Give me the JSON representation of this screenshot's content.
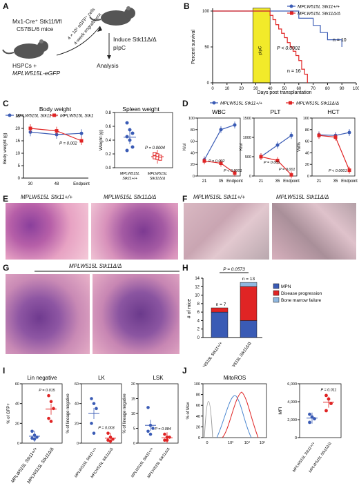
{
  "colors": {
    "blue": "#3a5bb5",
    "red": "#e02424",
    "yellow": "#f2ea2a",
    "darkred": "#c81e1e",
    "lightblue": "#8fb8e0"
  },
  "panels": {
    "A": {
      "label": "A",
      "mouse_top": "Mx1-Cre⁺ Stk11fl/fl",
      "strain": "C57BL/6 mice",
      "cells": "HSPCs +",
      "vector": "MPLW515L-eGFP",
      "transplant": "4 × 10⁵ eGFP⁺ cells",
      "engraft": "4-week engraftment",
      "induce": "Induce Stk11Δ/Δ",
      "drug": "pIpC",
      "analysis": "Analysis"
    },
    "B": {
      "label": "B",
      "legend": [
        "MPLW515L Stk11+/+",
        "MPLW515L Stk11Δ/Δ"
      ],
      "ylabel": "Percent survival",
      "xlabel": "Days post transplantation",
      "box": "pIpC",
      "pval": "P < 0.0001",
      "n_wt": "n = 10",
      "n_ko": "n = 16",
      "chart_data": {
        "type": "line",
        "x_ticks": [
          0,
          10,
          20,
          30,
          40,
          50,
          60,
          70,
          80,
          90,
          100
        ],
        "y_ticks": [
          0,
          50,
          100
        ],
        "series": [
          {
            "name": "MPLW515L Stk11+/+",
            "x": [
              0,
              50,
              60,
              70,
              75,
              80,
              90
            ],
            "y": [
              100,
              100,
              90,
              80,
              70,
              60,
              50
            ]
          },
          {
            "name": "MPLW515L Stk11Δ/Δ",
            "x": [
              0,
              40,
              42,
              44,
              46,
              48,
              50,
              52,
              54,
              56,
              58,
              60,
              62,
              64,
              66
            ],
            "y": [
              100,
              94,
              88,
              81,
              75,
              69,
              63,
              56,
              50,
              44,
              38,
              31,
              19,
              12,
              0
            ]
          }
        ]
      }
    },
    "C": {
      "label": "C",
      "bw_title": "Body weight",
      "sw_title": "Spleen weight",
      "legend": [
        "MPLW515L Stk11+/+",
        "MPLW515L Stk11Δ/Δ"
      ],
      "bw_ylabel": "Body weight (g)",
      "sw_ylabel": "Weight (g)",
      "bw_p": "P = 0.002",
      "sw_p": "P = 0.0004",
      "xticks": [
        "30",
        "48",
        "Endpoint"
      ],
      "sw_cats": [
        "MPLW515L Stk11+/+",
        "MPLW515L Stk11Δ/Δ"
      ],
      "chart_data": [
        {
          "type": "line",
          "categories": [
            "30",
            "48",
            "Endpoint"
          ],
          "ylim": [
            0,
            25
          ],
          "series": [
            {
              "name": "MPLW515L Stk11+/+",
              "values": [
                18.5,
                17.5,
                18
              ]
            },
            {
              "name": "MPLW515L Stk11Δ/Δ",
              "values": [
                20,
                19,
                15
              ]
            }
          ]
        },
        {
          "type": "scatter",
          "categories": [
            "MPLW515L Stk11+/+",
            "MPLW515L Stk11Δ/Δ"
          ],
          "ylim": [
            0,
            0.8
          ],
          "series": [
            {
              "name": "MPLW515L Stk11+/+",
              "values": [
                0.65,
                0.55,
                0.5,
                0.45,
                0.4,
                0.3,
                0.25
              ]
            },
            {
              "name": "MPLW515L Stk11Δ/Δ",
              "values": [
                0.2,
                0.18,
                0.16,
                0.15,
                0.14,
                0.13
              ]
            }
          ]
        }
      ]
    },
    "D": {
      "label": "D",
      "legend": [
        "MPLW515L Stk11+/+",
        "MPLW515L Stk11Δ/Δ"
      ],
      "titles": [
        "WBC",
        "PLT",
        "HCT"
      ],
      "ylabels": [
        "K/ul",
        "K/ul",
        "Vol%"
      ],
      "xticks": [
        "21",
        "35",
        "Endpoint"
      ],
      "pvals": {
        "wbc": [
          "P = 0.002",
          "P < 0.0001"
        ],
        "plt": [
          "P = 0.001",
          "P = 0.001"
        ],
        "hct": [
          "P < 0.0001"
        ]
      },
      "chart_data": [
        {
          "type": "line",
          "title": "WBC",
          "ylim": [
            0,
            100
          ],
          "series": [
            {
              "name": "MPLW515L Stk11+/+",
              "values": [
                28,
                80,
                88
              ]
            },
            {
              "name": "MPLW515L Stk11Δ/Δ",
              "values": [
                26,
                22,
                5
              ]
            }
          ]
        },
        {
          "type": "line",
          "title": "PLT",
          "ylim": [
            0,
            1500
          ],
          "series": [
            {
              "name": "MPLW515L Stk11+/+",
              "values": [
                500,
                800,
                1050
              ]
            },
            {
              "name": "MPLW515L Stk11Δ/Δ",
              "values": [
                500,
                400,
                30
              ]
            }
          ]
        },
        {
          "type": "line",
          "title": "HCT",
          "ylim": [
            0,
            100
          ],
          "series": [
            {
              "name": "MPLW515L Stk11+/+",
              "values": [
                71,
                70,
                75
              ]
            },
            {
              "name": "MPLW515L Stk11Δ/Δ",
              "values": [
                70,
                67,
                10
              ]
            }
          ]
        }
      ]
    },
    "E": {
      "label": "E",
      "cap_left": "MPLW515L Stk11+/+",
      "cap_right": "MPLW515L Stk11Δ/Δ"
    },
    "F": {
      "label": "F",
      "cap_left": "MPLW515L Stk11+/+",
      "cap_right": "MPLW515L Stk11Δ/Δ"
    },
    "G": {
      "label": "G",
      "cap": "MPLW515L Stk11Δ/Δ"
    },
    "H": {
      "label": "H",
      "ylabel": "# of mice",
      "pval": "P = 0.0573",
      "n_wt": "n = 7",
      "n_ko": "n = 13",
      "legend": [
        "MPN",
        "Disease progression",
        "Bone marrow failure"
      ],
      "xcats": [
        "MPLW515L Stk11+/+",
        "MPLW515L Stk11Δ/Δ"
      ],
      "chart_data": {
        "type": "bar",
        "categories": [
          "MPLW515L Stk11+/+",
          "MPLW515L Stk11Δ/Δ"
        ],
        "ylim": [
          0,
          14
        ],
        "series": [
          {
            "name": "MPN",
            "values": [
              6,
              4
            ]
          },
          {
            "name": "Disease progression",
            "values": [
              1,
              8
            ]
          },
          {
            "name": "Bone marrow failure",
            "values": [
              0,
              1
            ]
          }
        ]
      }
    },
    "I": {
      "label": "I",
      "titles": [
        "Lin negative",
        "LK",
        "LSK"
      ],
      "ylabels": [
        "% of GFP+",
        "% of lineage negative",
        "% of lineage negative"
      ],
      "pvals": [
        "P = 0.015",
        "P = 0.003",
        "P = 0.084"
      ],
      "xcats": [
        "MPLW515L Stk11+/+",
        "MPLW515L Stk11Δ/Δ"
      ],
      "chart_data": [
        {
          "type": "scatter",
          "title": "Lin negative",
          "ylim": [
            0,
            60
          ],
          "series": [
            {
              "name": "MPLW515L Stk11+/+",
              "values": [
                12,
                8,
                6,
                5,
                4
              ]
            },
            {
              "name": "MPLW515L Stk11Δ/Δ",
              "values": [
                48,
                42,
                35,
                25,
                22
              ]
            }
          ]
        },
        {
          "type": "scatter",
          "title": "LK",
          "ylim": [
            0,
            60
          ],
          "series": [
            {
              "name": "MPLW515L Stk11+/+",
              "values": [
                45,
                40,
                35,
                20,
                10
              ]
            },
            {
              "name": "MPLW515L Stk11Δ/Δ",
              "values": [
                10,
                6,
                4,
                3,
                2
              ]
            }
          ]
        },
        {
          "type": "scatter",
          "title": "LSK",
          "ylim": [
            0,
            20
          ],
          "series": [
            {
              "name": "MPLW515L Stk11+/+",
              "values": [
                12,
                6,
                5,
                4,
                3
              ]
            },
            {
              "name": "MPLW515L Stk11Δ/Δ",
              "values": [
                3,
                2,
                2,
                1,
                1
              ]
            }
          ]
        }
      ]
    },
    "J": {
      "label": "J",
      "hist_title": "MitoROS",
      "hist_ylabel": "% of Max",
      "mfi_ylabel": "MFI",
      "pval": "P = 0.011",
      "xticks": [
        "0",
        "10³",
        "10⁴",
        "10⁵"
      ],
      "yticks": [
        "0",
        "20",
        "40",
        "60",
        "80",
        "100"
      ],
      "mfi_ticks": [
        "0",
        "2,000",
        "4,000",
        "6,000"
      ],
      "xcats": [
        "MPLW515L Stk11+/+",
        "MPLW515L Stk11Δ/Δ"
      ],
      "chart_data": {
        "type": "scatter",
        "ylim": [
          0,
          6000
        ],
        "series": [
          {
            "name": "MPLW515L Stk11+/+",
            "values": [
              2600,
              2300,
              2100,
              1700
            ]
          },
          {
            "name": "MPLW515L Stk11Δ/Δ",
            "values": [
              4700,
              4300,
              3800,
              3000
            ]
          }
        ]
      }
    }
  }
}
